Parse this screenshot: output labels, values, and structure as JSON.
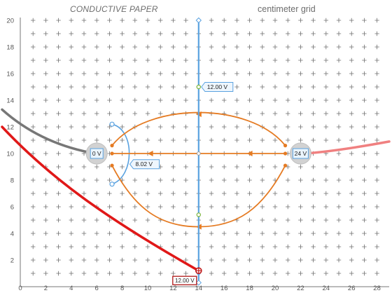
{
  "header": {
    "paper_label": "CONDUCTIVE PAPER",
    "grid_label": "centimeter grid"
  },
  "axes": {
    "x_ticks": [
      "0",
      "2",
      "4",
      "6",
      "8",
      "10",
      "12",
      "14",
      "16",
      "18",
      "20",
      "22",
      "24",
      "26",
      "28"
    ],
    "y_ticks": [
      "2",
      "4",
      "6",
      "8",
      "10",
      "12",
      "14",
      "16",
      "18",
      "20"
    ]
  },
  "electrodes": [
    {
      "label": "0 V",
      "x": 6,
      "y": 10
    },
    {
      "label": "24 V",
      "x": 22,
      "y": 10
    }
  ],
  "probe_line": {
    "x": 14,
    "y_min": 0.3,
    "y_max": 20
  },
  "readouts": {
    "probe_top": "12.00 V",
    "probe_left": "8.02 V",
    "probe_bottom": "12.00 V"
  },
  "colors": {
    "grid": "#6e6e6e",
    "probe": "#5aa2e0",
    "field_lines": "#e57b23",
    "wire_red": "#e01818",
    "wire_pink": "#f08080",
    "wire_gray": "#777777"
  }
}
